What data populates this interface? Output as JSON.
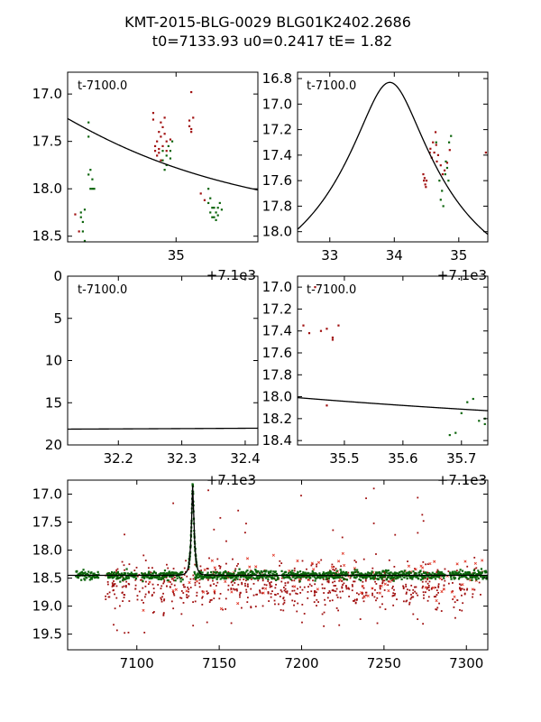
{
  "title": {
    "line1": "KMT-2015-BLG-0029 BLG01K2402.2686",
    "line2": "t0=7133.93 u0=0.2417 tE=   1.82"
  },
  "colors": {
    "red_dataset": "#a01010",
    "green_dataset": "#0b640b",
    "red_cross": "#e03020",
    "model": "#000000"
  },
  "model_params": {
    "t0": 7133.93,
    "u0": 0.2417,
    "tE": 1.82,
    "base_mag": 18.45,
    "peak_mag": 16.83
  },
  "chart_data": [
    {
      "id": "panel1",
      "type": "scatter",
      "annotation": "t-7100.0",
      "xlim": [
        34.43,
        35.43
      ],
      "ylim": [
        18.56,
        16.77
      ],
      "xticks": [
        {
          "v": 35.0,
          "label": "35"
        }
      ],
      "yticks": [
        {
          "v": 17.0,
          "label": "17.0"
        },
        {
          "v": 17.5,
          "label": "17.5"
        },
        {
          "v": 18.0,
          "label": "18.0"
        },
        {
          "v": 18.5,
          "label": "18.5"
        }
      ],
      "offset_label": "+7.1e3",
      "series": [
        {
          "name": "red",
          "points": [
            [
              34.47,
              18.27
            ],
            [
              34.49,
              18.45
            ],
            [
              34.88,
              17.2
            ],
            [
              34.88,
              17.27
            ],
            [
              34.89,
              17.55
            ],
            [
              34.89,
              17.6
            ],
            [
              34.9,
              17.5
            ],
            [
              34.9,
              17.65
            ],
            [
              34.91,
              17.58
            ],
            [
              34.91,
              17.4
            ],
            [
              34.91,
              17.62
            ],
            [
              34.92,
              17.45
            ],
            [
              34.92,
              17.3
            ],
            [
              34.92,
              17.7
            ],
            [
              34.93,
              17.35
            ],
            [
              34.93,
              17.55
            ],
            [
              34.94,
              17.25
            ],
            [
              34.94,
              17.42
            ],
            [
              34.95,
              17.6
            ],
            [
              34.95,
              17.5
            ],
            [
              34.97,
              17.48
            ],
            [
              35.07,
              17.28
            ],
            [
              35.07,
              17.34
            ],
            [
              35.08,
              17.4
            ],
            [
              35.08,
              17.37
            ],
            [
              35.08,
              16.98
            ],
            [
              35.09,
              17.25
            ],
            [
              35.13,
              18.05
            ],
            [
              35.15,
              18.12
            ]
          ]
        },
        {
          "name": "green",
          "points": [
            [
              34.5,
              18.25
            ],
            [
              34.5,
              18.3
            ],
            [
              34.51,
              18.35
            ],
            [
              34.51,
              18.45
            ],
            [
              34.52,
              18.55
            ],
            [
              34.52,
              18.22
            ],
            [
              34.54,
              17.3
            ],
            [
              34.54,
              17.45
            ],
            [
              34.54,
              17.85
            ],
            [
              34.55,
              17.8
            ],
            [
              34.55,
              18.0
            ],
            [
              34.56,
              17.9
            ],
            [
              34.56,
              18.0
            ],
            [
              34.57,
              18.0
            ],
            [
              34.93,
              17.6
            ],
            [
              34.93,
              17.7
            ],
            [
              34.94,
              17.8
            ],
            [
              34.95,
              17.65
            ],
            [
              34.95,
              17.75
            ],
            [
              34.96,
              17.55
            ],
            [
              34.97,
              17.6
            ],
            [
              34.97,
              17.68
            ],
            [
              34.98,
              17.5
            ],
            [
              35.17,
              18.0
            ],
            [
              35.17,
              18.15
            ],
            [
              35.18,
              18.1
            ],
            [
              35.18,
              18.25
            ],
            [
              35.19,
              18.2
            ],
            [
              35.19,
              18.3
            ],
            [
              35.2,
              18.3
            ],
            [
              35.2,
              18.2
            ],
            [
              35.21,
              18.25
            ],
            [
              35.21,
              18.33
            ],
            [
              35.22,
              18.2
            ],
            [
              35.22,
              18.28
            ],
            [
              35.23,
              18.15
            ],
            [
              35.24,
              18.22
            ]
          ]
        }
      ]
    },
    {
      "id": "panel2",
      "type": "scatter",
      "annotation": "t-7100.0",
      "xlim": [
        32.5,
        35.45
      ],
      "ylim": [
        18.08,
        16.75
      ],
      "xticks": [
        {
          "v": 33,
          "label": "33"
        },
        {
          "v": 34,
          "label": "34"
        },
        {
          "v": 35,
          "label": "35"
        }
      ],
      "yticks": [
        {
          "v": 16.8,
          "label": "16.8"
        },
        {
          "v": 17.0,
          "label": "17.0"
        },
        {
          "v": 17.2,
          "label": "17.2"
        },
        {
          "v": 17.4,
          "label": "17.4"
        },
        {
          "v": 17.6,
          "label": "17.6"
        },
        {
          "v": 17.8,
          "label": "17.8"
        },
        {
          "v": 18.0,
          "label": "18.0"
        }
      ],
      "offset_label": "+7.1e3",
      "series": [
        {
          "name": "red",
          "points": [
            [
              34.45,
              17.55
            ],
            [
              34.46,
              17.6
            ],
            [
              34.47,
              17.58
            ],
            [
              34.48,
              17.63
            ],
            [
              34.49,
              17.65
            ],
            [
              34.5,
              17.6
            ],
            [
              34.55,
              17.38
            ],
            [
              34.56,
              17.35
            ],
            [
              34.58,
              17.42
            ],
            [
              34.6,
              17.3
            ],
            [
              34.62,
              17.38
            ],
            [
              34.64,
              17.22
            ],
            [
              34.65,
              17.32
            ],
            [
              34.66,
              17.45
            ],
            [
              34.68,
              17.4
            ],
            [
              34.72,
              17.48
            ],
            [
              34.75,
              17.55
            ],
            [
              34.78,
              17.52
            ],
            [
              34.82,
              17.46
            ],
            [
              34.86,
              17.36
            ],
            [
              35.42,
              17.38
            ]
          ]
        },
        {
          "name": "green",
          "points": [
            [
              34.65,
              17.3
            ],
            [
              34.7,
              17.6
            ],
            [
              34.72,
              17.75
            ],
            [
              34.74,
              17.68
            ],
            [
              34.76,
              17.8
            ],
            [
              34.79,
              17.55
            ],
            [
              34.8,
              17.45
            ],
            [
              34.82,
              17.5
            ],
            [
              34.84,
              17.6
            ],
            [
              34.85,
              17.3
            ],
            [
              34.88,
              17.25
            ]
          ]
        }
      ]
    },
    {
      "id": "panel3",
      "type": "line",
      "annotation": "t-7100.0",
      "xlim": [
        32.12,
        32.42
      ],
      "ylim": [
        20.0,
        0.0
      ],
      "xticks": [
        {
          "v": 32.2,
          "label": "32.2"
        },
        {
          "v": 32.3,
          "label": "32.3"
        },
        {
          "v": 32.4,
          "label": "32.4"
        }
      ],
      "yticks": [
        {
          "v": 0,
          "label": "0"
        },
        {
          "v": 5,
          "label": "5"
        },
        {
          "v": 10,
          "label": "10"
        },
        {
          "v": 15,
          "label": "15"
        },
        {
          "v": 20,
          "label": "20"
        }
      ],
      "offset_label": "+7.1e3",
      "series": []
    },
    {
      "id": "panel4",
      "type": "scatter",
      "annotation": "t-7100.0",
      "xlim": [
        35.42,
        35.745
      ],
      "ylim": [
        18.44,
        16.9
      ],
      "xticks": [
        {
          "v": 35.5,
          "label": "35.5"
        },
        {
          "v": 35.6,
          "label": "35.6"
        },
        {
          "v": 35.7,
          "label": "35.7"
        }
      ],
      "yticks": [
        {
          "v": 17.0,
          "label": "17.0"
        },
        {
          "v": 17.2,
          "label": "17.2"
        },
        {
          "v": 17.4,
          "label": "17.4"
        },
        {
          "v": 17.6,
          "label": "17.6"
        },
        {
          "v": 17.8,
          "label": "17.8"
        },
        {
          "v": 18.0,
          "label": "18.0"
        },
        {
          "v": 18.2,
          "label": "18.2"
        },
        {
          "v": 18.4,
          "label": "18.4"
        }
      ],
      "offset_label": "+7.1e3",
      "series": [
        {
          "name": "red",
          "points": [
            [
              35.43,
              17.35
            ],
            [
              35.44,
              17.42
            ],
            [
              35.46,
              17.4
            ],
            [
              35.47,
              17.38
            ],
            [
              35.48,
              17.46
            ],
            [
              35.45,
              17.0
            ],
            [
              35.49,
              17.35
            ],
            [
              35.48,
              17.48
            ],
            [
              35.47,
              18.08
            ]
          ]
        },
        {
          "name": "green",
          "points": [
            [
              35.68,
              18.35
            ],
            [
              35.69,
              18.33
            ],
            [
              35.7,
              18.15
            ],
            [
              35.71,
              18.05
            ],
            [
              35.72,
              18.02
            ],
            [
              35.73,
              18.22
            ],
            [
              35.74,
              18.25
            ],
            [
              35.74,
              18.2
            ]
          ]
        }
      ]
    },
    {
      "id": "panel5",
      "type": "scatter",
      "annotation": "",
      "xlim": [
        7058,
        7313
      ],
      "ylim": [
        19.78,
        16.75
      ],
      "xticks": [
        {
          "v": 7100,
          "label": "7100"
        },
        {
          "v": 7150,
          "label": "7150"
        },
        {
          "v": 7200,
          "label": "7200"
        },
        {
          "v": 7250,
          "label": "7250"
        },
        {
          "v": 7300,
          "label": "7300"
        }
      ],
      "yticks": [
        {
          "v": 17.0,
          "label": "17.0"
        },
        {
          "v": 17.5,
          "label": "17.5"
        },
        {
          "v": 18.0,
          "label": "18.0"
        },
        {
          "v": 18.5,
          "label": "18.5"
        },
        {
          "v": 19.0,
          "label": "19.0"
        },
        {
          "v": 19.5,
          "label": "19.5"
        }
      ],
      "offset_label": "",
      "baseline_mag": 18.45,
      "green_segments": [
        [
          7063,
          7077
        ],
        [
          7082,
          7100
        ],
        [
          7103,
          7128
        ],
        [
          7135,
          7186
        ],
        [
          7188,
          7228
        ],
        [
          7230,
          7287
        ],
        [
          7290,
          7313
        ]
      ],
      "red_nights_hint": "dense red scatter between 7080 and 7310, spread about 18.0 to 19.7"
    }
  ]
}
